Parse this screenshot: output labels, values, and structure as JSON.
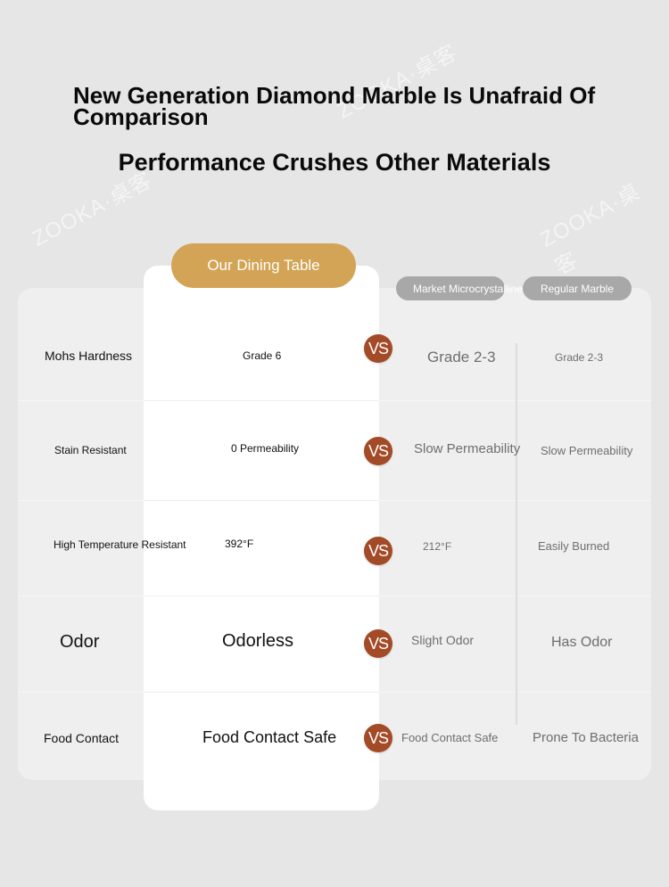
{
  "watermark": {
    "text": "ZOOKA·桌客"
  },
  "header": {
    "title": "New Generation Diamond Marble Is Unafraid Of Comparison",
    "subtitle": "Performance Crushes Other Materials"
  },
  "columns": {
    "ours": "Our Dining Table",
    "market": "Market Microcrystalline Stone",
    "regular": "Regular Marble"
  },
  "vs_label": "VS",
  "rows": [
    {
      "label": "Mohs Hardness",
      "ours": "Grade 6",
      "market": "Grade 2-3",
      "regular": "Grade 2-3"
    },
    {
      "label": "Stain Resistant",
      "ours": "0 Permeability",
      "market": "Slow Permeability",
      "regular": "Slow Permeability"
    },
    {
      "label": "High Temperature Resistant",
      "ours": "392°F",
      "market": "212°F",
      "regular": "Easily Burned"
    },
    {
      "label": "Odor",
      "ours": "Odorless",
      "market": "Slight Odor",
      "regular": "Has Odor"
    },
    {
      "label": "Food Contact",
      "ours": "Food Contact Safe",
      "market": "Food Contact Safe",
      "regular": "Prone To Bacteria"
    }
  ]
}
